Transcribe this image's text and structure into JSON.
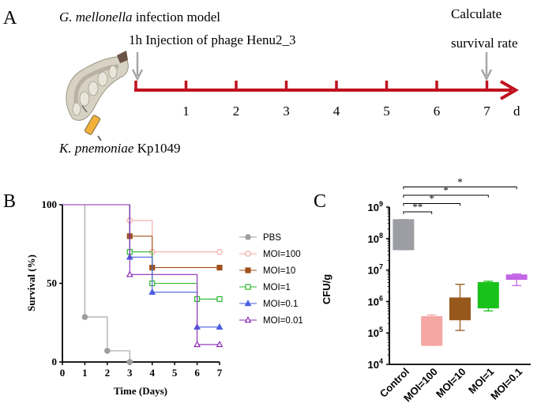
{
  "panel_a": {
    "letter": "A",
    "model_title_italic": "G. mellonella",
    "model_title_rest": " infection model",
    "injection_label": "1h Injection of phage Henu2_3",
    "calc_line1": "Calculate",
    "calc_line2": "survival rate",
    "strain_italic": "K. pnemoniae",
    "strain_rest": " Kp1049",
    "day_ticks": [
      "1",
      "2",
      "3",
      "4",
      "5",
      "6",
      "7"
    ],
    "unit": "d",
    "colors": {
      "timeline": "#c0111f",
      "arrow": "#a6a6a6"
    }
  },
  "chart_data": [
    {
      "panel": "B",
      "type": "line",
      "subtype": "kaplan-meier step",
      "xlabel": "Time (Days)",
      "ylabel": "Survival (%)",
      "xlim": [
        0,
        7
      ],
      "ylim": [
        0,
        100
      ],
      "xticks": [
        "0",
        "1",
        "2",
        "3",
        "4",
        "5",
        "6",
        "7"
      ],
      "yticks": [
        "0",
        "50",
        "100"
      ],
      "legend_position": "right",
      "series": [
        {
          "name": "PBS",
          "color": "#9e9e9e",
          "marker": "circle-filled",
          "steps": [
            [
              0,
              100
            ],
            [
              1,
              28.6
            ],
            [
              2,
              7.1
            ],
            [
              3,
              0
            ]
          ],
          "end": 3
        },
        {
          "name": "MOI=100",
          "color": "#f4a7a3",
          "marker": "circle-open",
          "steps": [
            [
              0,
              100
            ],
            [
              3,
              90
            ],
            [
              4,
              70
            ]
          ],
          "end": 7
        },
        {
          "name": "MOI=10",
          "color": "#a0521d",
          "marker": "square-filled",
          "steps": [
            [
              0,
              100
            ],
            [
              3,
              80
            ],
            [
              4,
              60
            ]
          ],
          "end": 7
        },
        {
          "name": "MOI=1",
          "color": "#2ab52a",
          "marker": "square-open",
          "steps": [
            [
              0,
              100
            ],
            [
              3,
              70
            ],
            [
              4,
              50
            ],
            [
              6,
              40
            ]
          ],
          "end": 7
        },
        {
          "name": "MOI=0.1",
          "color": "#4a5de0",
          "marker": "triangle-filled",
          "steps": [
            [
              0,
              100
            ],
            [
              3,
              66.7
            ],
            [
              4,
              44.4
            ],
            [
              6,
              22.2
            ]
          ],
          "end": 7
        },
        {
          "name": "MOI=0.01",
          "color": "#8a2bb5",
          "marker": "triangle-open",
          "steps": [
            [
              0,
              100
            ],
            [
              3,
              55.6
            ],
            [
              6,
              11.1
            ]
          ],
          "end": 7
        }
      ]
    },
    {
      "panel": "C",
      "type": "box",
      "ylabel": "CFU/g",
      "yscale": "log",
      "ylim_exp": [
        4,
        9
      ],
      "ytick_exponents": [
        "4",
        "5",
        "6",
        "7",
        "8",
        "9"
      ],
      "ytick_base": "10",
      "categories": [
        "Control",
        "MOI=100",
        "MOI=10",
        "MOI=1",
        "MOI=0.1"
      ],
      "boxes": [
        {
          "label": "Control",
          "color": "#9d9ea3",
          "min": 44000000,
          "q1": 44000000,
          "median": 100000000,
          "q3": 400000000,
          "max": 400000000
        },
        {
          "label": "MOI=100",
          "color": "#f4a7a3",
          "min": 40000,
          "q1": 40000,
          "median": 110000,
          "q3": 330000,
          "max": 370000
        },
        {
          "label": "MOI=10",
          "color": "#96581c",
          "min": 120000,
          "q1": 260000,
          "median": 500000,
          "q3": 1300000,
          "max": 3500000
        },
        {
          "label": "MOI=1",
          "color": "#19c11b",
          "min": 500000,
          "q1": 620000,
          "median": 1500000,
          "q3": 4000000,
          "max": 4400000
        },
        {
          "label": "MOI=0.1",
          "color": "#c266e6",
          "min": 3200000,
          "q1": 5000000,
          "median": 6000000,
          "q3": 7000000,
          "max": 7500000
        }
      ],
      "significance": [
        {
          "from": "Control",
          "to": "MOI=100",
          "label": "**"
        },
        {
          "from": "Control",
          "to": "MOI=10",
          "label": "*"
        },
        {
          "from": "Control",
          "to": "MOI=1",
          "label": "*"
        },
        {
          "from": "Control",
          "to": "MOI=0.1",
          "label": "*"
        }
      ]
    }
  ]
}
